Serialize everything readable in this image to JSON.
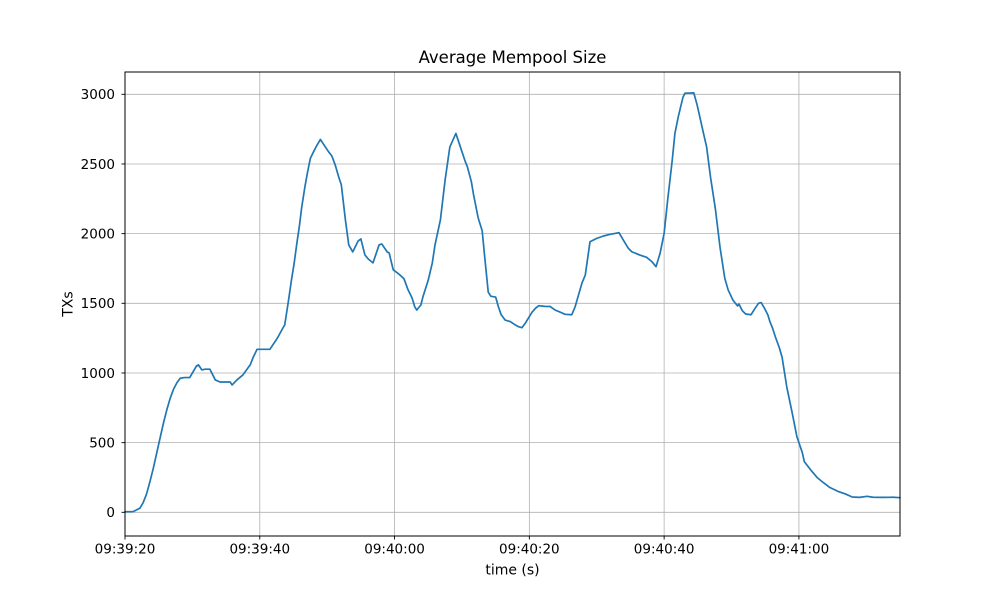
{
  "chart_data": {
    "type": "line",
    "title": "Average Mempool Size",
    "xlabel": "time (s)",
    "ylabel": "TXs",
    "grid": true,
    "legend": "none",
    "line_color": "#1f77b4",
    "grid_color": "#b0b0b0",
    "axes_color": "#000000",
    "background_color": "#ffffff",
    "x_axis": {
      "start_time": "09:39:20",
      "xlim_seconds": [
        0,
        115
      ],
      "tick_seconds": [
        0,
        20,
        40,
        60,
        80,
        100
      ],
      "tick_labels": [
        "09:39:20",
        "09:39:40",
        "09:40:00",
        "09:40:20",
        "09:40:40",
        "09:41:00"
      ]
    },
    "y_axis": {
      "ylim": [
        -170,
        3160
      ],
      "ticks": [
        0,
        500,
        1000,
        1500,
        2000,
        2500,
        3000
      ]
    },
    "series": [
      {
        "name": "average-mempool-size",
        "color": "#1f77b4",
        "x_seconds": [
          0,
          1.2,
          2.2,
          2.7,
          3.2,
          3.7,
          4.2,
          4.7,
          5.2,
          5.7,
          6.2,
          6.7,
          7.2,
          7.7,
          8.2,
          8.8,
          9.6,
          10.6,
          10.9,
          11.4,
          11.9,
          12.6,
          13.4,
          14.1,
          15.6,
          15.9,
          16.6,
          17.5,
          18.6,
          19.0,
          19.6,
          21.5,
          22.6,
          23.4,
          23.7,
          24.2,
          24.7,
          25.1,
          25.5,
          25.9,
          26.2,
          26.7,
          27.1,
          27.5,
          27.9,
          28.5,
          29.0,
          29.7,
          30.2,
          30.7,
          31.2,
          31.7,
          32.1,
          32.7,
          33.2,
          33.8,
          34.6,
          35.0,
          35.6,
          36.1,
          36.8,
          37.7,
          38.1,
          38.9,
          39.2,
          39.8,
          40.4,
          41.1,
          41.4,
          42.0,
          42.6,
          43.0,
          43.3,
          43.9,
          44.2,
          45.0,
          45.6,
          46.0,
          46.8,
          47.5,
          48.2,
          49.1,
          50.0,
          50.5,
          50.8,
          51.4,
          51.7,
          52.4,
          53.0,
          53.4,
          53.9,
          54.3,
          55.0,
          55.4,
          55.8,
          56.4,
          57.2,
          57.9,
          58.4,
          58.9,
          59.4,
          59.9,
          60.4,
          60.9,
          61.4,
          62.3,
          63.1,
          63.8,
          64.6,
          65.3,
          66.3,
          66.8,
          67.3,
          67.8,
          68.3,
          69.0,
          70.0,
          71.0,
          72.0,
          73.3,
          74.0,
          74.7,
          75.2,
          76.4,
          77.4,
          78.2,
          78.8,
          79.4,
          80.0,
          80.5,
          81.2,
          81.6,
          82.1,
          82.8,
          83.1,
          84.4,
          84.9,
          85.4,
          85.9,
          86.3,
          86.9,
          87.6,
          88.3,
          89.0,
          89.5,
          90.2,
          90.5,
          90.9,
          91.1,
          91.6,
          92.1,
          92.9,
          93.4,
          94.0,
          94.4,
          94.9,
          95.4,
          95.7,
          96.1,
          96.5,
          97.1,
          97.5,
          98.2,
          99.0,
          99.7,
          100.5,
          100.8,
          101.7,
          102.7,
          103.6,
          104.6,
          105.8,
          106.9,
          107.9,
          109.0,
          110.1,
          111.0,
          112.5,
          114.0,
          115.0
        ],
        "values": [
          4,
          5,
          29,
          70,
          132,
          220,
          316,
          424,
          532,
          639,
          735,
          818,
          883,
          930,
          962,
          967,
          967,
          1050,
          1058,
          1022,
          1027,
          1027,
          950,
          935,
          935,
          914,
          950,
          986,
          1060,
          1110,
          1170,
          1170,
          1249,
          1320,
          1345,
          1500,
          1667,
          1787,
          1930,
          2062,
          2182,
          2337,
          2444,
          2540,
          2580,
          2636,
          2676,
          2624,
          2588,
          2557,
          2492,
          2408,
          2350,
          2100,
          1919,
          1869,
          1948,
          1962,
          1847,
          1818,
          1790,
          1919,
          1926,
          1869,
          1861,
          1740,
          1719,
          1690,
          1676,
          1597,
          1538,
          1474,
          1452,
          1488,
          1545,
          1667,
          1790,
          1919,
          2098,
          2385,
          2622,
          2719,
          2588,
          2516,
          2480,
          2372,
          2285,
          2114,
          2021,
          1820,
          1580,
          1550,
          1545,
          1476,
          1420,
          1380,
          1368,
          1345,
          1332,
          1325,
          1357,
          1397,
          1436,
          1464,
          1483,
          1478,
          1477,
          1452,
          1436,
          1421,
          1418,
          1476,
          1560,
          1644,
          1703,
          1942,
          1966,
          1983,
          1995,
          2007,
          1949,
          1894,
          1870,
          1846,
          1830,
          1798,
          1763,
          1859,
          2002,
          2230,
          2526,
          2719,
          2839,
          2980,
          3008,
          3010,
          2923,
          2815,
          2707,
          2623,
          2400,
          2179,
          1900,
          1680,
          1596,
          1524,
          1505,
          1481,
          1495,
          1447,
          1423,
          1418,
          1457,
          1500,
          1505,
          1464,
          1416,
          1368,
          1320,
          1260,
          1180,
          1114,
          900,
          714,
          543,
          429,
          364,
          307,
          250,
          214,
          178,
          150,
          132,
          110,
          107,
          115,
          108,
          107,
          108,
          105
        ]
      }
    ]
  }
}
